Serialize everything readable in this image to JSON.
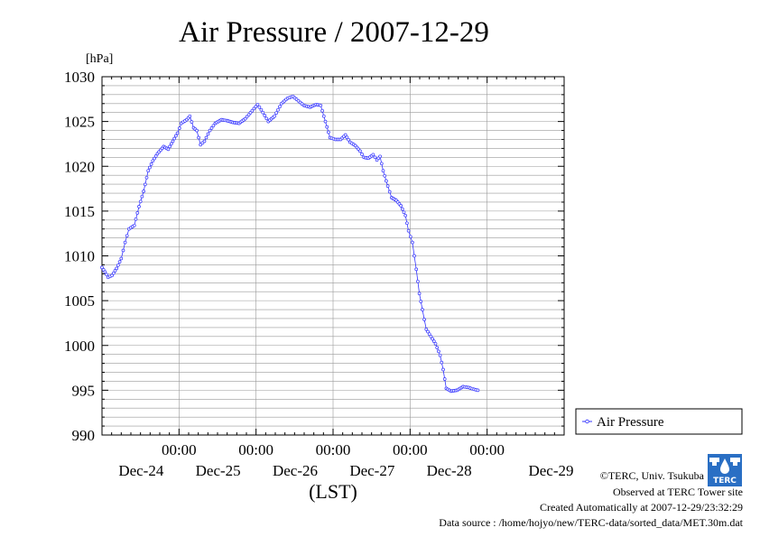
{
  "title": "Air Pressure / 2007-12-29",
  "unit_label": "[hPa]",
  "xlabel": "(LST)",
  "colors": {
    "series": "#3333ff",
    "axis": "#000000",
    "grid": "#999999",
    "logo": "#2a6fc4"
  },
  "credits": {
    "copyright": "©TERC, Univ. Tsukuba",
    "observed": "Observed at TERC Tower site",
    "created": "Created Automatically at 2007-12-29/23:32:29",
    "source": "Data source : /home/hojyo/new/TERC-data/sorted_data/MET.30m.dat"
  },
  "logo": {
    "icon": "terc-logo-icon",
    "text": "TERC"
  },
  "chart_data": {
    "type": "line",
    "title": "Air Pressure / 2007-12-29",
    "ylabel": "[hPa]",
    "xlabel": "(LST)",
    "ylim": [
      990,
      1030
    ],
    "yticks": [
      "990",
      "995",
      "1000",
      "1005",
      "1010",
      "1015",
      "1020",
      "1025",
      "1030"
    ],
    "xlim_days": [
      0,
      6
    ],
    "xticks": [
      {
        "day": 1,
        "time": "00:00",
        "date": "Dec-24"
      },
      {
        "day": 2,
        "time": "00:00",
        "date": "Dec-25"
      },
      {
        "day": 3,
        "time": "00:00",
        "date": "Dec-26"
      },
      {
        "day": 4,
        "time": "00:00",
        "date": "Dec-27"
      },
      {
        "day": 5,
        "time": "00:00",
        "date": "Dec-28"
      }
    ],
    "date_labels_only": [
      {
        "day": 5.83,
        "date": "Dec-29"
      }
    ],
    "grid": true,
    "legend": "right",
    "series": [
      {
        "name": "Air Pressure",
        "points": [
          [
            0.0,
            1008.7
          ],
          [
            0.04,
            1008.2
          ],
          [
            0.08,
            1007.6
          ],
          [
            0.13,
            1007.8
          ],
          [
            0.19,
            1008.6
          ],
          [
            0.25,
            1009.7
          ],
          [
            0.3,
            1011.5
          ],
          [
            0.35,
            1013.0
          ],
          [
            0.42,
            1013.4
          ],
          [
            0.48,
            1015.5
          ],
          [
            0.54,
            1017.2
          ],
          [
            0.6,
            1019.5
          ],
          [
            0.66,
            1020.6
          ],
          [
            0.72,
            1021.4
          ],
          [
            0.8,
            1022.2
          ],
          [
            0.86,
            1021.9
          ],
          [
            0.92,
            1022.8
          ],
          [
            0.98,
            1023.7
          ],
          [
            1.03,
            1024.8
          ],
          [
            1.1,
            1025.2
          ],
          [
            1.14,
            1025.6
          ],
          [
            1.19,
            1024.3
          ],
          [
            1.23,
            1024.0
          ],
          [
            1.28,
            1022.4
          ],
          [
            1.33,
            1022.8
          ],
          [
            1.4,
            1024.0
          ],
          [
            1.47,
            1024.8
          ],
          [
            1.55,
            1025.2
          ],
          [
            1.62,
            1025.1
          ],
          [
            1.7,
            1024.9
          ],
          [
            1.78,
            1024.8
          ],
          [
            1.86,
            1025.3
          ],
          [
            1.95,
            1026.2
          ],
          [
            2.02,
            1026.9
          ],
          [
            2.09,
            1026.0
          ],
          [
            2.16,
            1025.0
          ],
          [
            2.24,
            1025.6
          ],
          [
            2.33,
            1027.0
          ],
          [
            2.41,
            1027.6
          ],
          [
            2.48,
            1027.8
          ],
          [
            2.55,
            1027.3
          ],
          [
            2.62,
            1026.8
          ],
          [
            2.7,
            1026.6
          ],
          [
            2.78,
            1026.9
          ],
          [
            2.84,
            1026.8
          ],
          [
            2.9,
            1025.0
          ],
          [
            2.96,
            1023.2
          ],
          [
            3.03,
            1023.0
          ],
          [
            3.1,
            1023.0
          ],
          [
            3.16,
            1023.5
          ],
          [
            3.22,
            1022.7
          ],
          [
            3.29,
            1022.3
          ],
          [
            3.35,
            1021.7
          ],
          [
            3.4,
            1021.0
          ],
          [
            3.46,
            1020.9
          ],
          [
            3.52,
            1021.3
          ],
          [
            3.57,
            1020.7
          ],
          [
            3.61,
            1021.1
          ],
          [
            3.65,
            1019.5
          ],
          [
            3.71,
            1017.8
          ],
          [
            3.76,
            1016.5
          ],
          [
            3.82,
            1016.2
          ],
          [
            3.88,
            1015.6
          ],
          [
            3.94,
            1014.5
          ],
          [
            3.98,
            1012.8
          ],
          [
            4.03,
            1011.5
          ],
          [
            4.08,
            1008.5
          ],
          [
            4.12,
            1005.8
          ],
          [
            4.16,
            1004.0
          ],
          [
            4.21,
            1001.8
          ],
          [
            4.27,
            1001.0
          ],
          [
            4.33,
            1000.2
          ],
          [
            4.39,
            998.9
          ],
          [
            4.43,
            997.3
          ],
          [
            4.47,
            995.2
          ],
          [
            4.53,
            994.9
          ],
          [
            4.61,
            995.0
          ],
          [
            4.69,
            995.4
          ],
          [
            4.76,
            995.3
          ],
          [
            4.83,
            995.1
          ],
          [
            4.88,
            995.0
          ]
        ]
      }
    ]
  }
}
